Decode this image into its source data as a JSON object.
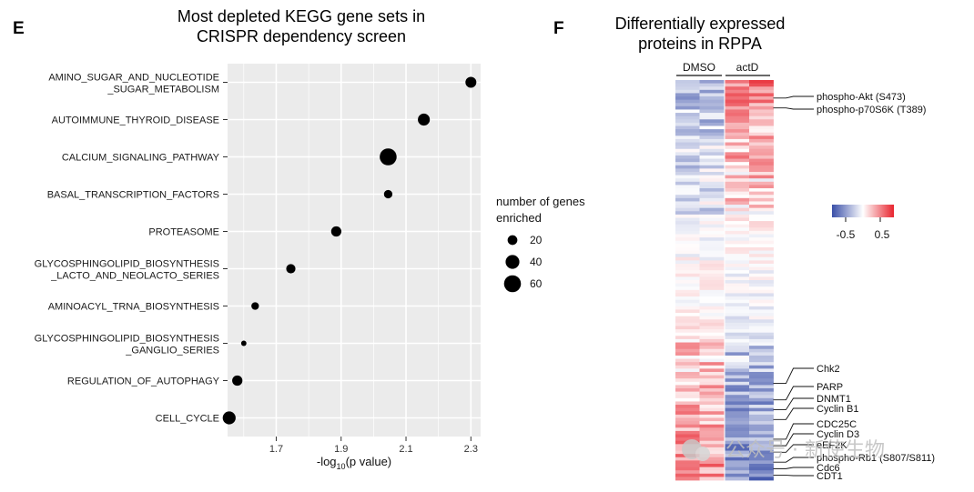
{
  "panel_e": {
    "letter": "E",
    "title_line1": "Most depleted KEGG gene sets in",
    "title_line2": "CRISPR dependency screen"
  },
  "panel_f": {
    "letter": "F",
    "title_line1": "Differentially expressed",
    "title_line2": "proteins in RPPA"
  },
  "chart_data": [
    {
      "type": "scatter",
      "title": "Most depleted KEGG gene sets in CRISPR dependency screen",
      "xlabel": "-log10(p value)",
      "xlabel_prefix": "-log",
      "xlabel_sub": "10",
      "xlabel_suffix": "(p value)",
      "ylabel": "",
      "xlim": [
        1.55,
        2.33
      ],
      "xticks": [
        1.7,
        1.9,
        2.1,
        2.3
      ],
      "xtick_labels": [
        "1.7",
        "1.9",
        "2.1",
        "2.3"
      ],
      "grid": true,
      "categories": [
        [
          "AMINO_SUGAR_AND_NUCLEOTIDE",
          "_SUGAR_METABOLISM"
        ],
        [
          "AUTOIMMUNE_THYROID_DISEASE"
        ],
        [
          "CALCIUM_SIGNALING_PATHWAY"
        ],
        [
          "BASAL_TRANSCRIPTION_FACTORS"
        ],
        [
          "PROTEASOME"
        ],
        [
          "GLYCOSPHINGOLIPID_BIOSYNTHESIS",
          "_LACTO_AND_NEOLACTO_SERIES"
        ],
        [
          "AMINOACYL_TRNA_BIOSYNTHESIS"
        ],
        [
          "GLYCOSPHINGOLIPID_BIOSYNTHESIS",
          "_GANGLIO_SERIES"
        ],
        [
          "REGULATION_OF_AUTOPHAGY"
        ],
        [
          "CELL_CYCLE"
        ]
      ],
      "x": [
        2.3,
        2.155,
        2.045,
        2.045,
        1.885,
        1.745,
        1.635,
        1.6,
        1.58,
        1.555
      ],
      "size": [
        25,
        30,
        60,
        15,
        22,
        18,
        12,
        6,
        22,
        35
      ],
      "legend": {
        "title_line1": "number of genes",
        "title_line2": "enriched",
        "entries": [
          {
            "label": "20",
            "value": 20
          },
          {
            "label": "40",
            "value": 40
          },
          {
            "label": "60",
            "value": 60
          }
        ],
        "placement": "right"
      }
    },
    {
      "type": "heatmap",
      "title": "Differentially expressed proteins in RPPA",
      "groups": [
        "DMSO",
        "actD"
      ],
      "columns": 4,
      "colorbar": {
        "ticks": [
          -0.5,
          0.5
        ],
        "tick_labels": [
          "-0.5",
          "0.5"
        ],
        "range": [
          -0.8,
          0.8
        ],
        "low_color": "#3a4fa8",
        "mid_color": "#ffffff",
        "high_color": "#e8242e"
      },
      "row_labels": [
        {
          "label": "phospho-Akt (S473)",
          "row": 5
        },
        {
          "label": "phospho-p70S6K (T389)",
          "row": 8
        },
        {
          "label": "Chk2",
          "row": 92
        },
        {
          "label": "PARP",
          "row": 97
        },
        {
          "label": "DNMT1",
          "row": 100
        },
        {
          "label": "Cyclin B1",
          "row": 103
        },
        {
          "label": "CDC25C",
          "row": 109
        },
        {
          "label": "Cyclin D3",
          "row": 111
        },
        {
          "label": "eEF2K",
          "row": 113
        },
        {
          "label": "phospho-Rb1 (S807/S811)",
          "row": 116
        },
        {
          "label": "Cdc6",
          "row": 118
        },
        {
          "label": "CDT1",
          "row": 120
        }
      ]
    }
  ],
  "watermark": "公众号 · 新使生物"
}
